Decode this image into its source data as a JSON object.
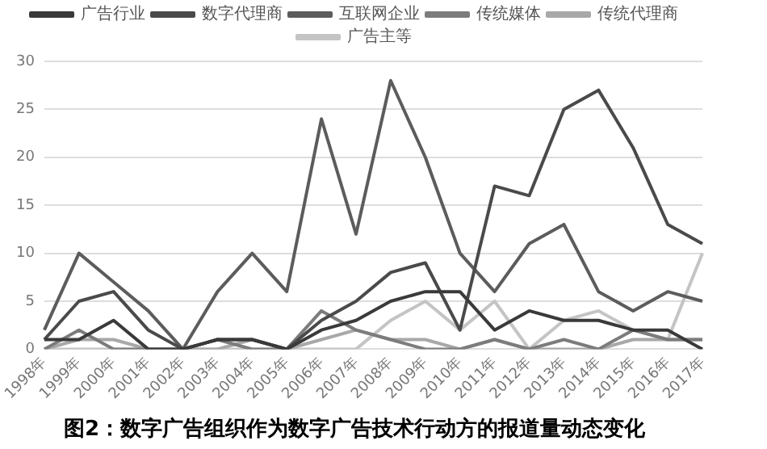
{
  "chart_data": {
    "type": "line",
    "title": "图2：数字广告组织作为数字广告技术行动方的报道量动态变化",
    "categories": [
      "1998年",
      "1999年",
      "2000年",
      "2001年",
      "2002年",
      "2003年",
      "2004年",
      "2005年",
      "2006年",
      "2007年",
      "2008年",
      "2009年",
      "2010年",
      "2011年",
      "2012年",
      "2013年",
      "2014年",
      "2015年",
      "2016年",
      "2017年"
    ],
    "series": [
      {
        "name": "广告行业",
        "color": "#3a3a3a",
        "values": [
          1,
          1,
          3,
          0,
          0,
          1,
          1,
          0,
          2,
          3,
          5,
          6,
          6,
          2,
          4,
          3,
          3,
          2,
          2,
          0
        ]
      },
      {
        "name": "数字代理商",
        "color": "#4a4a4a",
        "values": [
          1,
          5,
          6,
          2,
          0,
          1,
          1,
          0,
          3,
          5,
          8,
          9,
          2,
          17,
          16,
          25,
          27,
          21,
          13,
          11
        ]
      },
      {
        "name": "互联网企业",
        "color": "#5c5c5c",
        "values": [
          2,
          10,
          7,
          4,
          0,
          6,
          10,
          6,
          24,
          12,
          28,
          20,
          10,
          6,
          11,
          13,
          6,
          4,
          6,
          5
        ]
      },
      {
        "name": "传统媒体",
        "color": "#7c7c7c",
        "values": [
          0,
          2,
          0,
          0,
          0,
          1,
          0,
          0,
          4,
          2,
          1,
          0,
          0,
          1,
          0,
          1,
          0,
          2,
          1,
          1
        ]
      },
      {
        "name": "传统代理商",
        "color": "#a8a8a8",
        "values": [
          0,
          1,
          1,
          0,
          0,
          0,
          1,
          0,
          1,
          2,
          1,
          1,
          0,
          1,
          0,
          0,
          0,
          1,
          1,
          1
        ]
      },
      {
        "name": "广告主等",
        "color": "#c4c4c4",
        "values": [
          0,
          0,
          0,
          0,
          0,
          0,
          0,
          0,
          0,
          0,
          3,
          5,
          2,
          5,
          0,
          3,
          4,
          2,
          1,
          10
        ]
      }
    ],
    "ylim": [
      0,
      30
    ],
    "yticks": [
      0,
      5,
      10,
      15,
      20,
      25,
      30
    ],
    "grid": "y",
    "legend": "top",
    "marker": "none",
    "line_style": "solid"
  }
}
